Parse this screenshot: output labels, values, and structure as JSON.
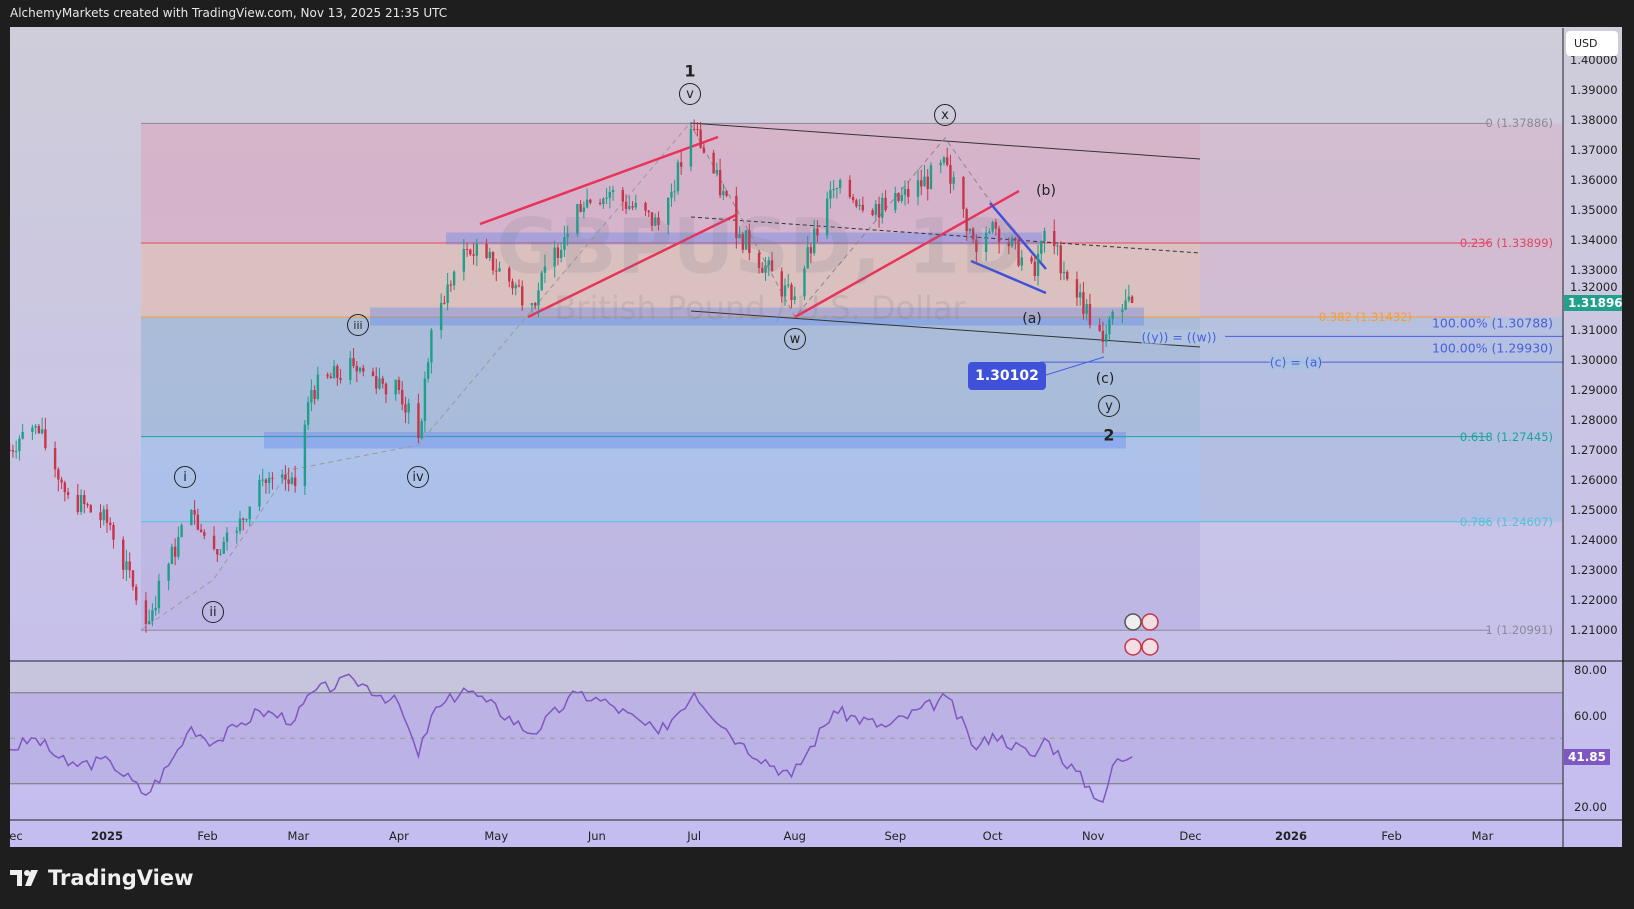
{
  "header": {
    "attribution": "AlchemyMarkets created with TradingView.com, Nov 13, 2025 21:35 UTC"
  },
  "footer": {
    "brand": "TradingView"
  },
  "watermark": {
    "symbol": "GBPUSD, 1D",
    "description": "British Pound / U.S. Dollar"
  },
  "price_axis": {
    "currency": "USD",
    "ticks": [
      "1.40000",
      "1.39000",
      "1.38000",
      "1.37000",
      "1.36000",
      "1.35000",
      "1.34000",
      "1.33000",
      "1.32000",
      "1.31000",
      "1.30000",
      "1.29000",
      "1.28000",
      "1.27000",
      "1.26000",
      "1.25000",
      "1.24000",
      "1.23000",
      "1.22000",
      "1.21000"
    ],
    "last_price": "1.31896",
    "last_price_color": "#22a08c"
  },
  "rsi_axis": {
    "ticks": [
      "80.00",
      "60.00",
      "20.00"
    ],
    "last_value": "41.85",
    "last_value_color": "#7e57c2"
  },
  "time_axis": {
    "ticks": [
      [
        "2024-12-01",
        "Dec"
      ],
      [
        "2025-01-01",
        "2025"
      ],
      [
        "2025-02-01",
        "Feb"
      ],
      [
        "2025-03-01",
        "Mar"
      ],
      [
        "2025-04-01",
        "Apr"
      ],
      [
        "2025-05-01",
        "May"
      ],
      [
        "2025-06-01",
        "Jun"
      ],
      [
        "2025-07-01",
        "Jul"
      ],
      [
        "2025-08-01",
        "Aug"
      ],
      [
        "2025-09-01",
        "Sep"
      ],
      [
        "2025-10-01",
        "Oct"
      ],
      [
        "2025-11-01",
        "Nov"
      ],
      [
        "2025-12-01",
        "Dec"
      ],
      [
        "2026-01-01",
        "2026"
      ],
      [
        "2026-02-01",
        "Feb"
      ],
      [
        "2026-03-01",
        "Mar"
      ]
    ]
  },
  "fib_levels": [
    {
      "label": "0 (1.37886)",
      "price": 1.37886,
      "color": "#8a8a9a",
      "zone": "rgba(230,140,170,0.35)"
    },
    {
      "label": "0.236 (1.33899)",
      "price": 1.33899,
      "color": "#e0475f",
      "zone": "rgba(240,180,140,0.40)"
    },
    {
      "label": "0.382 (1.31432)",
      "price": 1.31432,
      "color": "#f0a030",
      "zone": "rgba(110,170,200,0.35)"
    },
    {
      "label": "0.618 (1.27445)",
      "price": 1.27445,
      "color": "#1aa59a",
      "zone": "rgba(130,190,240,0.40)"
    },
    {
      "label": "0.786 (1.24607)",
      "price": 1.24607,
      "color": "#4fc3d7",
      "zone": "rgba(170,160,220,0.30)"
    },
    {
      "label": "1 (1.20991)",
      "price": 1.20991,
      "color": "#8a8a9a",
      "zone": null
    }
  ],
  "projections": [
    {
      "label": "100.00% (1.30788)",
      "price": 1.30788,
      "line_label": "((y)) = ((w))"
    },
    {
      "label": "100.00% (1.29930)",
      "price": 1.2993,
      "line_label": "(c) = (a)"
    }
  ],
  "low_label": "1.30102",
  "wave_labels": {
    "one": "1",
    "v": "v",
    "x": "x",
    "b": "(b)",
    "iii": "iii",
    "w": "w",
    "a": "(a)",
    "c": "(c)",
    "y": "y",
    "two": "2",
    "i": "i",
    "ii": "ii",
    "iv": "iv"
  },
  "chart_data": {
    "type": "candlestick",
    "symbol": "GBPUSD",
    "interval": "1D",
    "ylim": [
      1.2,
      1.41
    ],
    "price_path": [
      [
        "2024-12-02",
        1.27
      ],
      [
        "2024-12-06",
        1.276
      ],
      [
        "2024-12-10",
        1.278
      ],
      [
        "2024-12-20",
        1.255
      ],
      [
        "2025-01-02",
        1.245
      ],
      [
        "2025-01-13",
        1.212
      ],
      [
        "2025-01-20",
        1.232
      ],
      [
        "2025-01-27",
        1.25
      ],
      [
        "2025-02-03",
        1.237
      ],
      [
        "2025-02-10",
        1.243
      ],
      [
        "2025-02-17",
        1.26
      ],
      [
        "2025-02-28",
        1.258
      ],
      [
        "2025-03-05",
        1.29
      ],
      [
        "2025-03-18",
        1.298
      ],
      [
        "2025-04-01",
        1.29
      ],
      [
        "2025-04-07",
        1.274
      ],
      [
        "2025-04-11",
        1.31
      ],
      [
        "2025-04-21",
        1.337
      ],
      [
        "2025-04-28",
        1.334
      ],
      [
        "2025-05-12",
        1.319
      ],
      [
        "2025-05-26",
        1.352
      ],
      [
        "2025-06-05",
        1.356
      ],
      [
        "2025-06-20",
        1.345
      ],
      [
        "2025-07-01",
        1.377
      ],
      [
        "2025-07-15",
        1.342
      ],
      [
        "2025-07-31",
        1.32
      ],
      [
        "2025-08-13",
        1.357
      ],
      [
        "2025-08-29",
        1.35
      ],
      [
        "2025-09-17",
        1.365
      ],
      [
        "2025-09-26",
        1.336
      ],
      [
        "2025-10-01",
        1.346
      ],
      [
        "2025-10-14",
        1.328
      ],
      [
        "2025-10-17",
        1.343
      ],
      [
        "2025-11-04",
        1.306
      ],
      [
        "2025-11-07",
        1.316
      ],
      [
        "2025-11-13",
        1.319
      ]
    ],
    "rsi": {
      "length": 14,
      "levels": [
        70,
        50,
        30
      ],
      "series": [
        [
          "2024-12-02",
          45
        ],
        [
          "2024-12-10",
          50
        ],
        [
          "2024-12-20",
          38
        ],
        [
          "2025-01-02",
          40
        ],
        [
          "2025-01-13",
          25
        ],
        [
          "2025-01-20",
          38
        ],
        [
          "2025-01-27",
          55
        ],
        [
          "2025-02-03",
          48
        ],
        [
          "2025-02-10",
          55
        ],
        [
          "2025-02-17",
          62
        ],
        [
          "2025-02-28",
          58
        ],
        [
          "2025-03-05",
          70
        ],
        [
          "2025-03-18",
          76
        ],
        [
          "2025-04-01",
          65
        ],
        [
          "2025-04-07",
          42
        ],
        [
          "2025-04-11",
          60
        ],
        [
          "2025-04-21",
          72
        ],
        [
          "2025-04-28",
          66
        ],
        [
          "2025-05-12",
          52
        ],
        [
          "2025-05-26",
          70
        ],
        [
          "2025-06-05",
          65
        ],
        [
          "2025-06-20",
          52
        ],
        [
          "2025-07-01",
          70
        ],
        [
          "2025-07-15",
          48
        ],
        [
          "2025-07-31",
          33
        ],
        [
          "2025-08-13",
          62
        ],
        [
          "2025-08-29",
          55
        ],
        [
          "2025-09-17",
          68
        ],
        [
          "2025-09-26",
          45
        ],
        [
          "2025-10-01",
          52
        ],
        [
          "2025-10-14",
          42
        ],
        [
          "2025-10-17",
          50
        ],
        [
          "2025-11-04",
          22
        ],
        [
          "2025-11-07",
          38
        ],
        [
          "2025-11-13",
          41.85
        ]
      ]
    },
    "colors": {
      "up": "#1f9e8a",
      "down": "#c8344a",
      "rsi": "#7e57c2",
      "channel": "#e8335a",
      "wedge": "#3f51d8"
    }
  }
}
